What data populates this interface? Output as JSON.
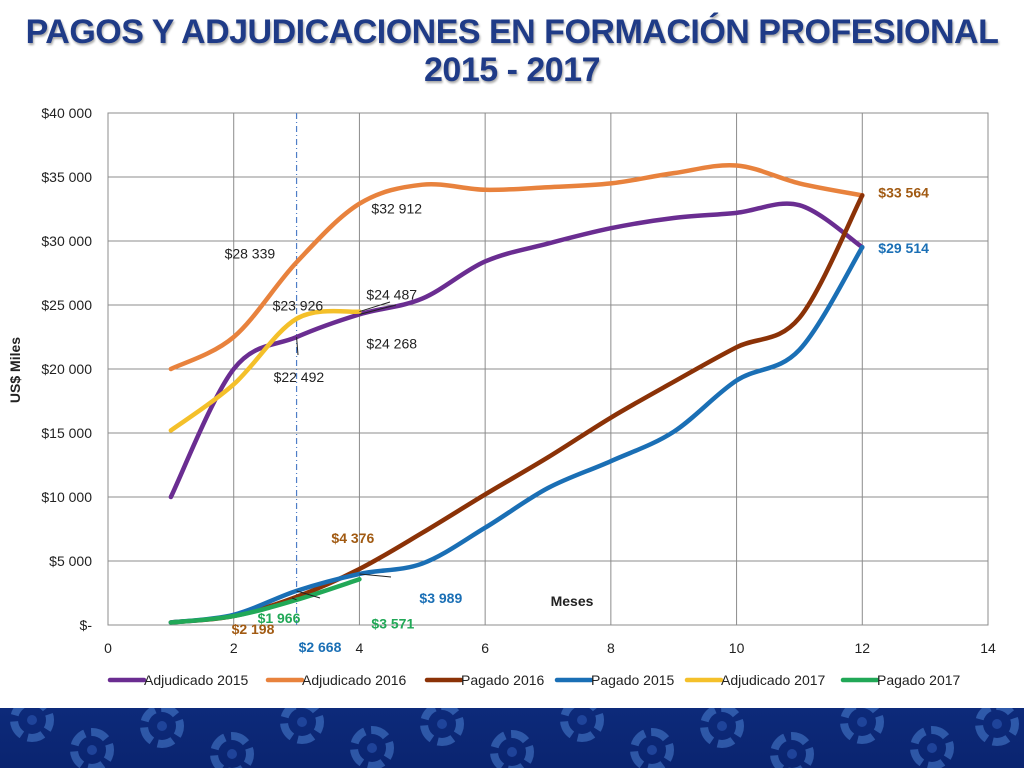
{
  "title_line1": "PAGOS Y ADJUDICACIONES EN FORMACIÓN PROFESIONAL",
  "title_line2": "2015 - 2017",
  "chart_data": {
    "type": "line",
    "title": "PAGOS Y ADJUDICACIONES EN FORMACIÓN PROFESIONAL 2015 - 2017",
    "xlabel": "Meses",
    "ylabel": "US$ Miles",
    "xlim": [
      0,
      14
    ],
    "ylim": [
      0,
      40000
    ],
    "x_ticks": [
      0,
      2,
      4,
      6,
      8,
      10,
      12,
      14
    ],
    "x_tick_labels": [
      "0",
      "2",
      "4",
      "6",
      "8",
      "10",
      "12",
      "14"
    ],
    "y_ticks": [
      0,
      5000,
      10000,
      15000,
      20000,
      25000,
      30000,
      35000,
      40000
    ],
    "y_tick_labels": [
      "$-",
      "$5 000",
      "$10 000",
      "$15 000",
      "$20 000",
      "$25 000",
      "$30 000",
      "$35 000",
      "$40 000"
    ],
    "grid": true,
    "legend_position": "bottom",
    "reference_line_x": 3,
    "series": [
      {
        "name": "Adjudicado 2015",
        "color": "#6a2d91",
        "x": [
          1,
          2,
          3,
          4,
          5,
          6,
          7,
          8,
          9,
          10,
          11,
          12
        ],
        "y": [
          10000,
          20000,
          22492,
          24268,
          25500,
          28400,
          29800,
          31000,
          31800,
          32200,
          32800,
          29514
        ]
      },
      {
        "name": "Adjudicado 2016",
        "color": "#e8823d",
        "x": [
          1,
          2,
          3,
          4,
          5,
          6,
          7,
          8,
          9,
          10,
          11,
          12
        ],
        "y": [
          20000,
          22500,
          28339,
          32912,
          34400,
          34000,
          34200,
          34500,
          35300,
          35900,
          34500,
          33564
        ]
      },
      {
        "name": "Pagado 2016",
        "color": "#8b3207",
        "x": [
          1,
          2,
          3,
          4,
          5,
          6,
          7,
          8,
          9,
          10,
          11,
          12
        ],
        "y": [
          200,
          700,
          2198,
          4376,
          7200,
          10200,
          13100,
          16200,
          19000,
          21700,
          24000,
          33564
        ]
      },
      {
        "name": "Pagado 2015",
        "color": "#1a6fb5",
        "x": [
          1,
          2,
          3,
          4,
          5,
          6,
          7,
          8,
          9,
          10,
          11,
          12
        ],
        "y": [
          200,
          800,
          2668,
          3989,
          4800,
          7600,
          10700,
          12800,
          15100,
          19100,
          21500,
          29514
        ]
      },
      {
        "name": "Adjudicado 2017",
        "color": "#f4c02a",
        "x": [
          1,
          2,
          3,
          4
        ],
        "y": [
          15200,
          18800,
          23926,
          24487
        ]
      },
      {
        "name": "Pagado 2017",
        "color": "#21a857",
        "x": [
          1,
          2,
          3,
          4
        ],
        "y": [
          200,
          700,
          1966,
          3571
        ]
      }
    ],
    "annotations": [
      {
        "text": "$32 912",
        "x": 4,
        "y": 32912,
        "color": "#222222",
        "bold": false
      },
      {
        "text": "$28 339",
        "x": 3,
        "y": 28339,
        "color": "#222222",
        "bold": false
      },
      {
        "text": "$23 926",
        "x": 3,
        "y": 23926,
        "color": "#222222",
        "bold": false
      },
      {
        "text": "$22 492",
        "x": 3,
        "y": 22492,
        "color": "#222222",
        "bold": false
      },
      {
        "text": "$24 487",
        "x": 4,
        "y": 24487,
        "color": "#222222",
        "bold": false
      },
      {
        "text": "$24 268",
        "x": 4,
        "y": 24268,
        "color": "#222222",
        "bold": false
      },
      {
        "text": "$33 564",
        "x": 12,
        "y": 33564,
        "color": "#a15a12",
        "bold": true
      },
      {
        "text": "$29 514",
        "x": 12,
        "y": 29514,
        "color": "#1a6fb5",
        "bold": true
      },
      {
        "text": "$4 376",
        "x": 4,
        "y": 4376,
        "color": "#a15a12",
        "bold": true
      },
      {
        "text": "$1 966",
        "x": 3,
        "y": 1966,
        "color": "#21a857",
        "bold": true
      },
      {
        "text": "$2 198",
        "x": 3,
        "y": 2198,
        "color": "#a15a12",
        "bold": true
      },
      {
        "text": "$2 668",
        "x": 3,
        "y": 2668,
        "color": "#1a6fb5",
        "bold": true
      },
      {
        "text": "$3 989",
        "x": 4,
        "y": 3989,
        "color": "#1a6fb5",
        "bold": true
      },
      {
        "text": "$3 571",
        "x": 4,
        "y": 3571,
        "color": "#21a857",
        "bold": true
      }
    ]
  }
}
